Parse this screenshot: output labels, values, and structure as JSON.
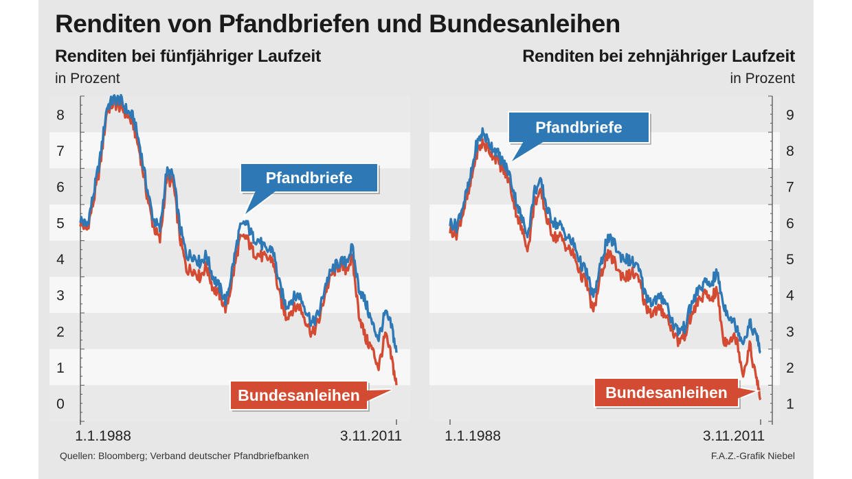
{
  "title": "Renditen von Pfandbriefen und Bundesanleihen",
  "source": "Quellen: Bloomberg; Verband deutscher Pfandbriefbanken",
  "credit": "F.A.Z.-Grafik Niebel",
  "colors": {
    "pfandbriefe": "#2e79b5",
    "bundesanleihen": "#d24b32",
    "band": "#e9e9e9",
    "background": "#e7e7e7"
  },
  "chart_data": [
    {
      "type": "line",
      "title": "Renditen bei fünfjähriger Laufzeit",
      "ylabel": "in Prozent",
      "ylim": [
        0,
        9
      ],
      "yticks": [
        0,
        1,
        2,
        3,
        4,
        5,
        6,
        7,
        8
      ],
      "xlim": [
        "1988-01-01",
        "2011-11-03"
      ],
      "xtick_labels": [
        "1.1.1988",
        "3.11.2011"
      ],
      "legend": [
        "Pfandbriefe",
        "Bundesanleihen"
      ],
      "x": [
        "1988-01-01",
        "1988-07-01",
        "1989-01-01",
        "1989-07-01",
        "1990-01-01",
        "1990-07-01",
        "1991-01-01",
        "1991-07-01",
        "1992-01-01",
        "1992-07-01",
        "1993-01-01",
        "1993-07-01",
        "1994-01-01",
        "1994-07-01",
        "1995-01-01",
        "1995-07-01",
        "1996-01-01",
        "1996-07-01",
        "1997-01-01",
        "1997-07-01",
        "1998-01-01",
        "1998-07-01",
        "1999-01-01",
        "1999-07-01",
        "2000-01-01",
        "2000-07-01",
        "2001-01-01",
        "2001-07-01",
        "2002-01-01",
        "2002-07-01",
        "2003-01-01",
        "2003-07-01",
        "2004-01-01",
        "2004-07-01",
        "2005-01-01",
        "2005-07-01",
        "2006-01-01",
        "2006-07-01",
        "2007-01-01",
        "2007-07-01",
        "2008-01-01",
        "2008-07-01",
        "2009-01-01",
        "2009-07-01",
        "2010-01-01",
        "2010-07-01",
        "2011-01-01",
        "2011-07-01",
        "2011-11-03"
      ],
      "series": [
        {
          "name": "Pfandbriefe",
          "values": [
            5.6,
            5.4,
            6.3,
            7.3,
            8.7,
            8.9,
            8.9,
            8.6,
            8.4,
            7.6,
            6.5,
            5.6,
            5.3,
            6.9,
            6.8,
            5.4,
            4.6,
            4.6,
            4.4,
            4.6,
            4.0,
            3.7,
            3.3,
            4.3,
            5.3,
            5.5,
            5.1,
            5.0,
            4.7,
            4.8,
            3.8,
            3.2,
            3.4,
            3.5,
            3.1,
            2.7,
            3.0,
            3.8,
            4.2,
            4.4,
            4.4,
            4.8,
            3.7,
            3.3,
            2.7,
            2.3,
            3.0,
            2.6,
            1.9
          ]
        },
        {
          "name": "Bundesanleihen",
          "values": [
            5.5,
            5.3,
            6.1,
            7.1,
            8.6,
            8.8,
            8.7,
            8.5,
            8.2,
            7.4,
            6.3,
            5.4,
            5.0,
            6.7,
            6.6,
            5.1,
            4.2,
            4.2,
            4.0,
            4.3,
            3.7,
            3.5,
            3.1,
            4.0,
            5.0,
            5.1,
            4.7,
            4.6,
            4.5,
            4.5,
            3.5,
            2.9,
            3.1,
            3.2,
            2.8,
            2.4,
            2.8,
            3.6,
            4.1,
            4.3,
            4.2,
            4.5,
            3.0,
            2.3,
            2.0,
            1.5,
            2.4,
            1.7,
            1.0
          ]
        }
      ]
    },
    {
      "type": "line",
      "title": "Renditen bei zehnjähriger Laufzeit",
      "ylabel": "in Prozent",
      "ylim": [
        1,
        10
      ],
      "yticks": [
        1,
        2,
        3,
        4,
        5,
        6,
        7,
        8,
        9
      ],
      "xlim": [
        "1988-01-01",
        "2011-11-03"
      ],
      "xtick_labels": [
        "1.1.1988",
        "3.11.2011"
      ],
      "legend": [
        "Pfandbriefe",
        "Bundesanleihen"
      ],
      "x": [
        "1988-01-01",
        "1988-07-01",
        "1989-01-01",
        "1989-07-01",
        "1990-01-01",
        "1990-07-01",
        "1991-01-01",
        "1991-07-01",
        "1992-01-01",
        "1992-07-01",
        "1993-01-01",
        "1993-07-01",
        "1994-01-01",
        "1994-07-01",
        "1995-01-01",
        "1995-07-01",
        "1996-01-01",
        "1996-07-01",
        "1997-01-01",
        "1997-07-01",
        "1998-01-01",
        "1998-07-01",
        "1999-01-01",
        "1999-07-01",
        "2000-01-01",
        "2000-07-01",
        "2001-01-01",
        "2001-07-01",
        "2002-01-01",
        "2002-07-01",
        "2003-01-01",
        "2003-07-01",
        "2004-01-01",
        "2004-07-01",
        "2005-01-01",
        "2005-07-01",
        "2006-01-01",
        "2006-07-01",
        "2007-01-01",
        "2007-07-01",
        "2008-01-01",
        "2008-07-01",
        "2009-01-01",
        "2009-07-01",
        "2010-01-01",
        "2010-07-01",
        "2011-01-01",
        "2011-07-01",
        "2011-11-03"
      ],
      "series": [
        {
          "name": "Pfandbriefe",
          "values": [
            6.5,
            6.4,
            7.0,
            7.6,
            8.6,
            9.0,
            8.7,
            8.5,
            8.2,
            7.9,
            7.2,
            6.6,
            6.2,
            7.4,
            7.6,
            6.8,
            6.5,
            6.4,
            6.1,
            5.9,
            5.4,
            5.1,
            4.4,
            5.2,
            6.0,
            6.0,
            5.6,
            5.5,
            5.4,
            5.2,
            4.5,
            4.3,
            4.4,
            4.4,
            3.8,
            3.5,
            3.6,
            4.2,
            4.6,
            4.8,
            4.8,
            5.1,
            4.2,
            3.9,
            3.6,
            3.2,
            3.7,
            3.4,
            2.9
          ]
        },
        {
          "name": "Bundesanleihen",
          "values": [
            6.3,
            6.2,
            6.8,
            7.4,
            8.4,
            8.7,
            8.5,
            8.3,
            8.0,
            7.7,
            6.9,
            6.3,
            5.8,
            7.1,
            7.3,
            6.5,
            6.1,
            6.1,
            5.8,
            5.6,
            5.1,
            4.8,
            4.0,
            4.9,
            5.6,
            5.5,
            5.1,
            5.0,
            5.1,
            4.9,
            4.2,
            4.0,
            4.1,
            4.0,
            3.6,
            3.2,
            3.4,
            3.9,
            4.3,
            4.5,
            4.4,
            4.6,
            3.2,
            3.3,
            3.3,
            2.3,
            3.1,
            2.2,
            1.6
          ]
        }
      ]
    }
  ]
}
